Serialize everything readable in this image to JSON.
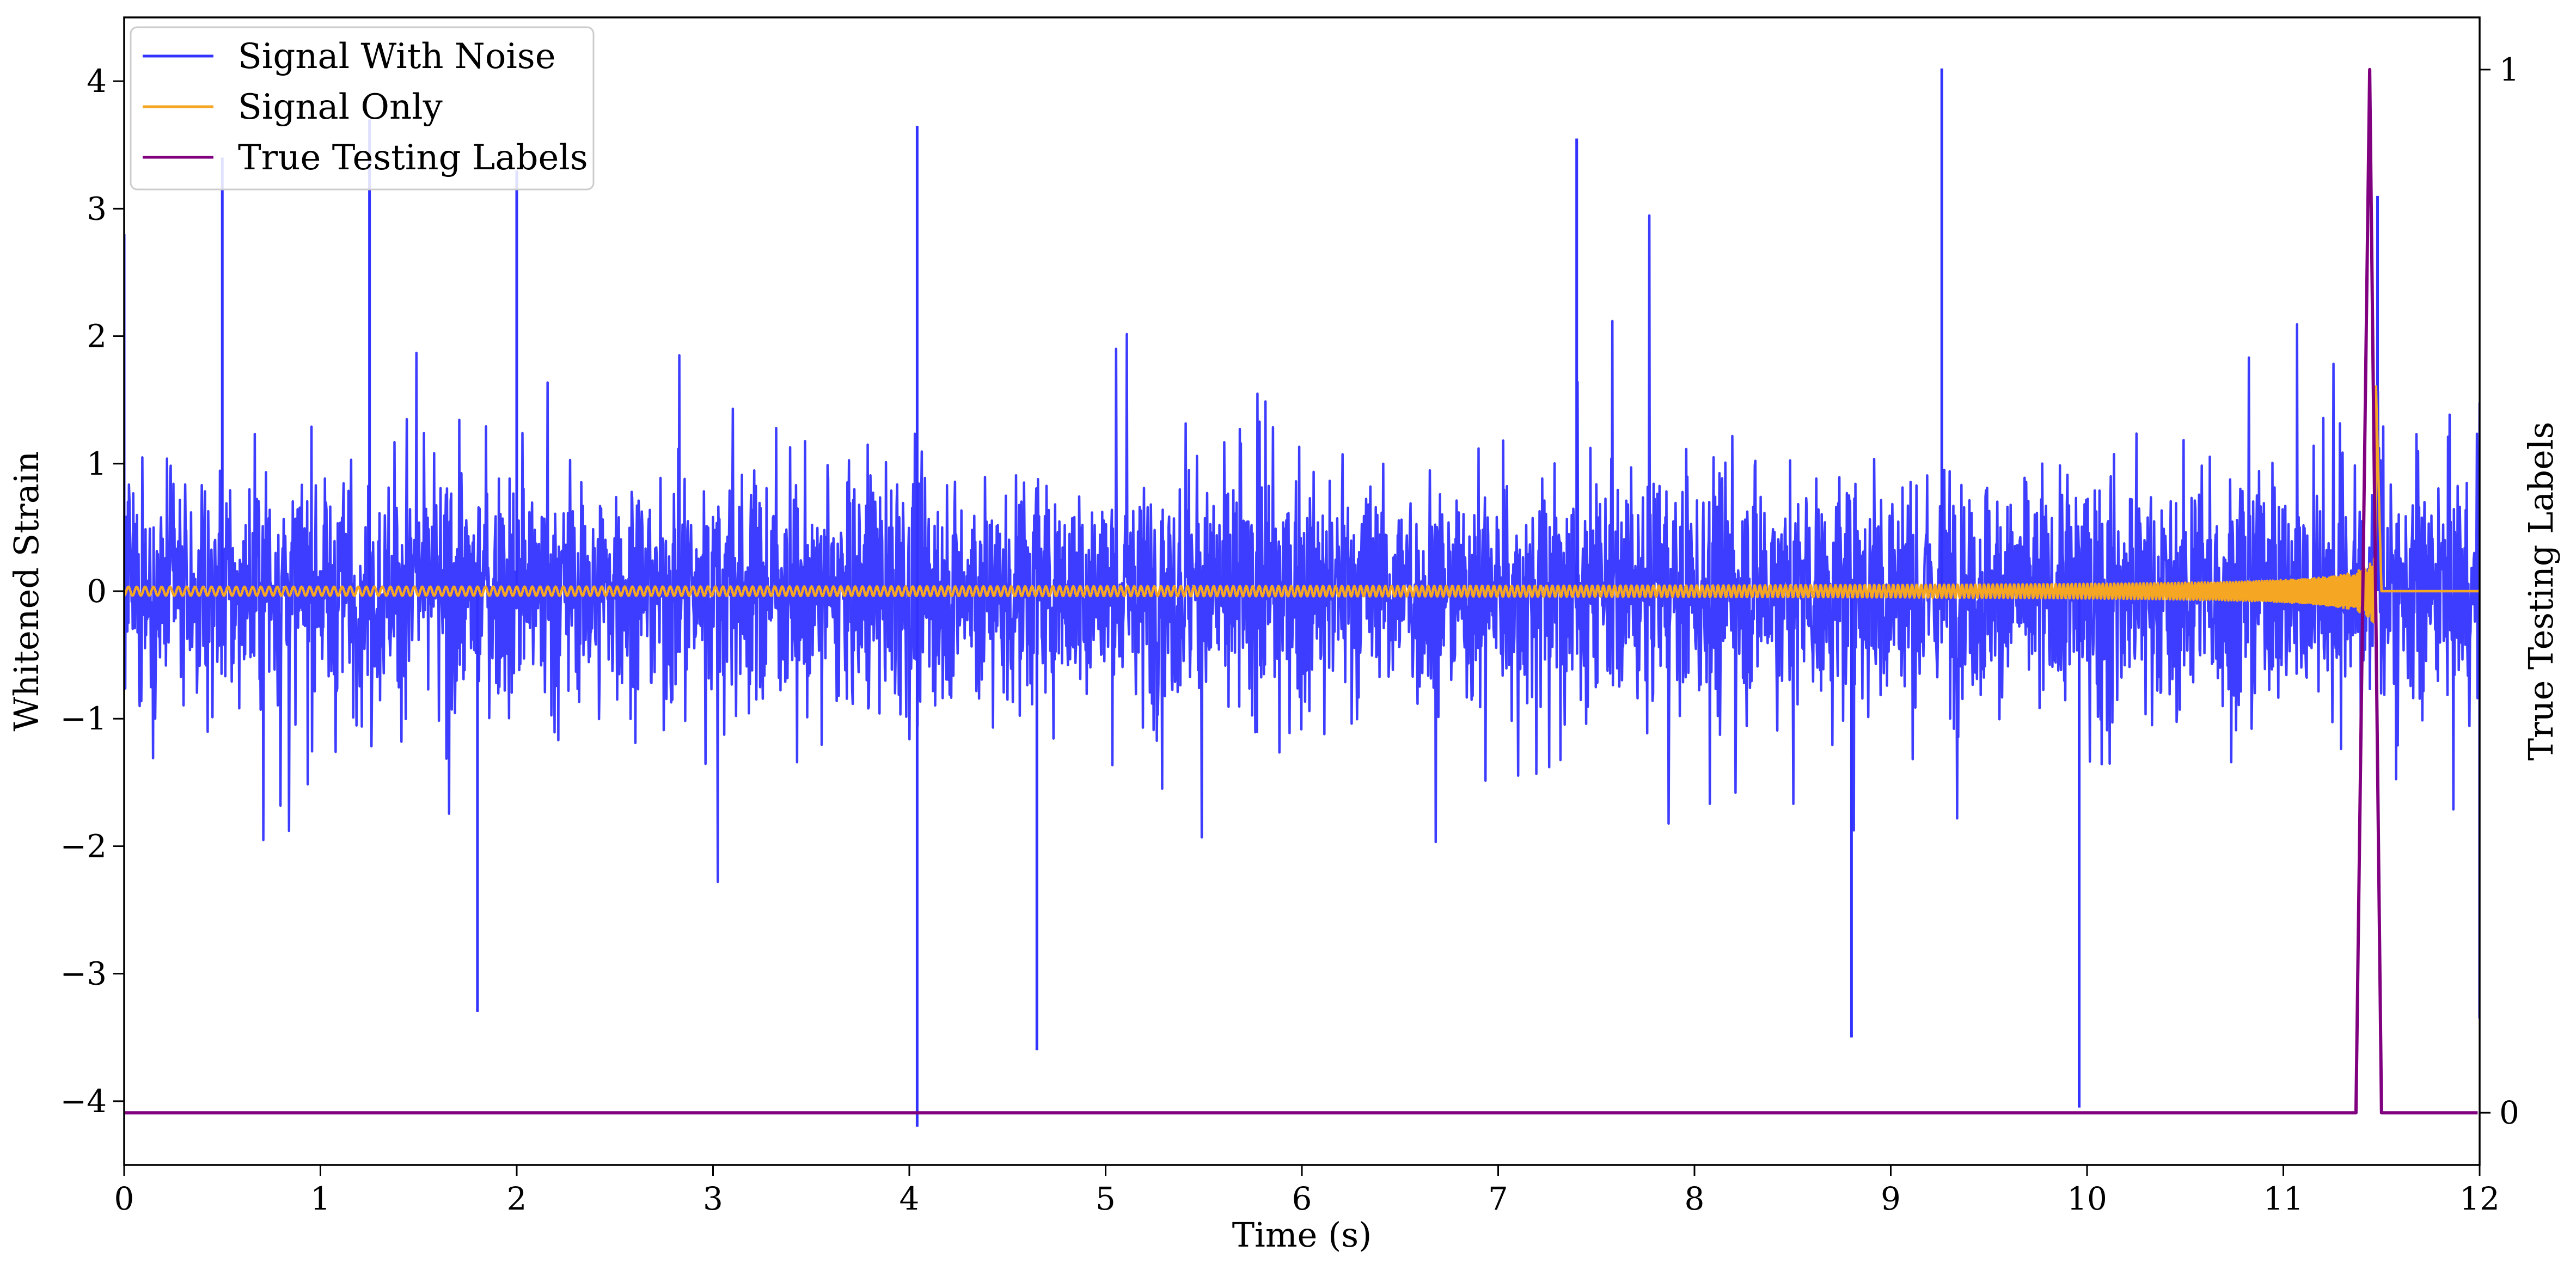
{
  "chart_data": {
    "type": "line",
    "xlabel": "Time (s)",
    "ylabel": "Whitened Strain",
    "ylabel_right": "True Testing Labels",
    "xlim": [
      0,
      12
    ],
    "ylim": [
      -4.5,
      4.5
    ],
    "ylim_right": [
      -0.05,
      1.05
    ],
    "x_ticks": [
      0,
      1,
      2,
      3,
      4,
      5,
      6,
      7,
      8,
      9,
      10,
      11,
      12
    ],
    "y_ticks": [
      -4,
      -3,
      -2,
      -1,
      0,
      1,
      2,
      3,
      4
    ],
    "y_tick_labels": [
      "−4",
      "−3",
      "−2",
      "−1",
      "0",
      "1",
      "2",
      "3",
      "4"
    ],
    "y_ticks_right": [
      0,
      1
    ],
    "grid": false,
    "legend_position": "top-left",
    "series": [
      {
        "name": "Signal With Noise",
        "color": "#3333ff",
        "axis": "left",
        "description_values": {
          "noise_envelope": [
            -2.0,
            2.0
          ],
          "notable_spikes": [
            {
              "x": 0.0,
              "y": 2.8
            },
            {
              "x": 0.5,
              "y": 3.4
            },
            {
              "x": 1.25,
              "y": 3.7
            },
            {
              "x": 1.8,
              "y": -3.3
            },
            {
              "x": 2.0,
              "y": 3.3
            },
            {
              "x": 4.04,
              "y": 3.65
            },
            {
              "x": 4.04,
              "y": -4.2
            },
            {
              "x": 4.65,
              "y": -3.6
            },
            {
              "x": 7.4,
              "y": 3.55
            },
            {
              "x": 8.8,
              "y": -3.5
            },
            {
              "x": 9.26,
              "y": 4.1
            },
            {
              "x": 9.96,
              "y": -4.05
            },
            {
              "x": 11.48,
              "y": 3.1
            },
            {
              "x": 12.0,
              "y": -3.35
            }
          ]
        }
      },
      {
        "name": "Signal Only",
        "color": "#f5a623",
        "axis": "left",
        "description_values": {
          "baseline": 0,
          "chirp_start": 0,
          "chirp_peak_time": 11.47,
          "chirp_peak_amplitude": 2.1,
          "chirp_end": 11.5
        }
      },
      {
        "name": "True Testing Labels",
        "color": "#800080",
        "axis": "right",
        "x": [
          0,
          11.37,
          11.44,
          11.5,
          11.99
        ],
        "y": [
          0,
          0,
          1,
          0,
          0
        ]
      }
    ]
  }
}
